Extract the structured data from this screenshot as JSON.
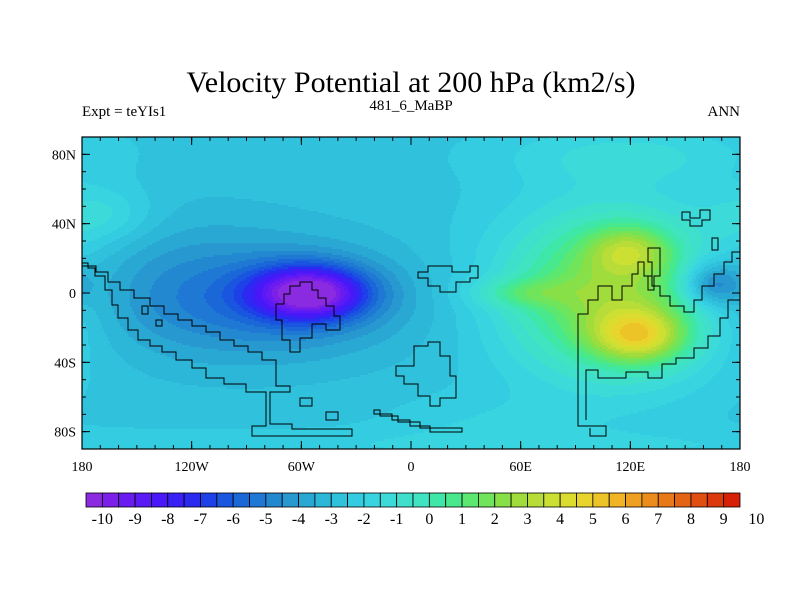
{
  "chart_data": {
    "type": "heatmap",
    "title": "Velocity Potential at 200 hPa (km2/s)",
    "subtitle_left": "Expt = teYIs1",
    "subtitle_center": "481_6_MaBP",
    "subtitle_right": "ANN",
    "x_ticks": [
      "180",
      "120W",
      "60W",
      "0",
      "60E",
      "120E",
      "180"
    ],
    "x_tick_values": [
      -180,
      -120,
      -60,
      0,
      60,
      120,
      180
    ],
    "y_ticks": [
      "80N",
      "40N",
      "0",
      "40S",
      "80S"
    ],
    "y_tick_values": [
      80,
      40,
      0,
      -40,
      -80
    ],
    "xlim": [
      -180,
      180
    ],
    "ylim": [
      -90,
      90
    ],
    "contour_levels": [
      -10,
      -9.5,
      -9,
      -8.5,
      -8,
      -7.5,
      -7,
      -6.5,
      -6,
      -5.5,
      -5,
      -4.5,
      -4,
      -3.5,
      -3,
      -2.5,
      -2,
      -1.5,
      -1,
      -0.5,
      0,
      0.5,
      1,
      1.5,
      2,
      2.5,
      3,
      3.5,
      4,
      4.5,
      5,
      5.5,
      6,
      6.5,
      7,
      7.5,
      8,
      8.5,
      9,
      9.5,
      10
    ],
    "colorbar_labels": [
      "-10",
      "-9",
      "-8",
      "-7",
      "-6",
      "-5",
      "-4",
      "-3",
      "-2",
      "-1",
      "0",
      "1",
      "2",
      "3",
      "4",
      "5",
      "6",
      "7",
      "8",
      "9",
      "10"
    ],
    "colorbar_colors": [
      "#8a2be2",
      "#7b20e8",
      "#6a1cf0",
      "#5a1af5",
      "#4a18f8",
      "#3a20f5",
      "#2a2af0",
      "#1e40e8",
      "#1a55e0",
      "#1a68d8",
      "#1e78d4",
      "#2288d0",
      "#2898d0",
      "#2aa8d4",
      "#2cb6d8",
      "#30c2dc",
      "#34cce0",
      "#38d4e0",
      "#3cdad8",
      "#3ee0cc",
      "#40e4c0",
      "#3ee6a8",
      "#48e88c",
      "#5ce870",
      "#70e45a",
      "#88e048",
      "#a0dc3c",
      "#b8dc38",
      "#cce034",
      "#dcdc30",
      "#e8d42c",
      "#ecc428",
      "#f0b424",
      "#f0a020",
      "#ec8c1c",
      "#e87818",
      "#e46414",
      "#e04e10",
      "#dc380c",
      "#d82008"
    ],
    "field_note": "velocity potential, negative center near 55W 0N (about -9), positive centers near 125E 25S (about 8) and 120E 25N (about 6)"
  }
}
